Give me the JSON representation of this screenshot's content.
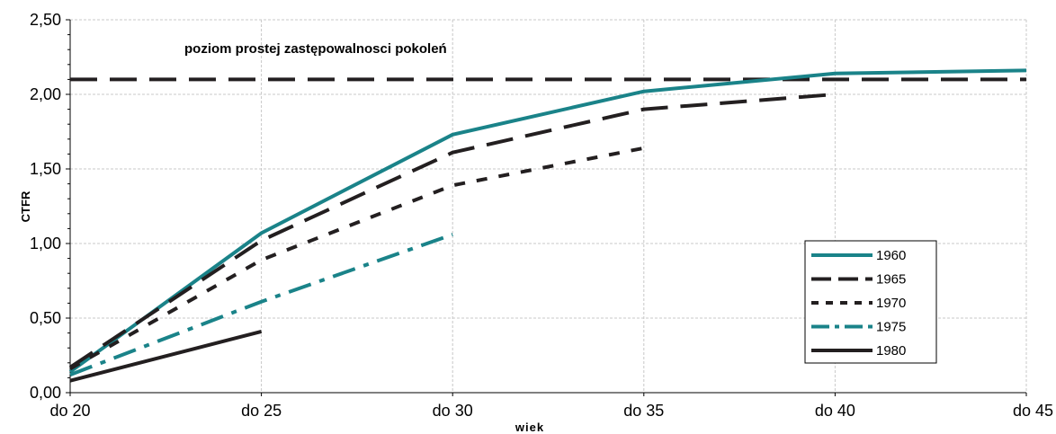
{
  "chart_data": {
    "type": "line",
    "categories": [
      "do 20",
      "do 25",
      "do 30",
      "do 35",
      "do 40",
      "do 45"
    ],
    "xlabel": "wiek",
    "ylabel": "CTFR",
    "ylim": [
      0,
      2.5
    ],
    "ytick_labels": [
      "0,00",
      "0,50",
      "1,00",
      "1,50",
      "2,00",
      "2,50"
    ],
    "yticks": [
      0,
      0.5,
      1.0,
      1.5,
      2.0,
      2.5
    ],
    "grid": true,
    "legend_position": "right",
    "reference_line": {
      "value": 2.1,
      "label": "poziom prostej zastępowalnosci pokoleń",
      "color": "#231f20"
    },
    "series": [
      {
        "name": "1960",
        "values": [
          0.14,
          1.07,
          1.73,
          2.02,
          2.14,
          2.16
        ],
        "color": "#1a8389",
        "dash": "solid"
      },
      {
        "name": "1965",
        "values": [
          0.17,
          1.02,
          1.61,
          1.9,
          2.0,
          null
        ],
        "color": "#231f20",
        "dash": "long-dash"
      },
      {
        "name": "1970",
        "values": [
          0.16,
          0.89,
          1.39,
          1.64,
          null,
          null
        ],
        "color": "#231f20",
        "dash": "short-dash"
      },
      {
        "name": "1975",
        "values": [
          0.12,
          0.61,
          1.06,
          null,
          null,
          null
        ],
        "color": "#1a8389",
        "dash": "dash-dot"
      },
      {
        "name": "1980",
        "values": [
          0.08,
          0.41,
          null,
          null,
          null,
          null
        ],
        "color": "#231f20",
        "dash": "solid"
      }
    ]
  }
}
